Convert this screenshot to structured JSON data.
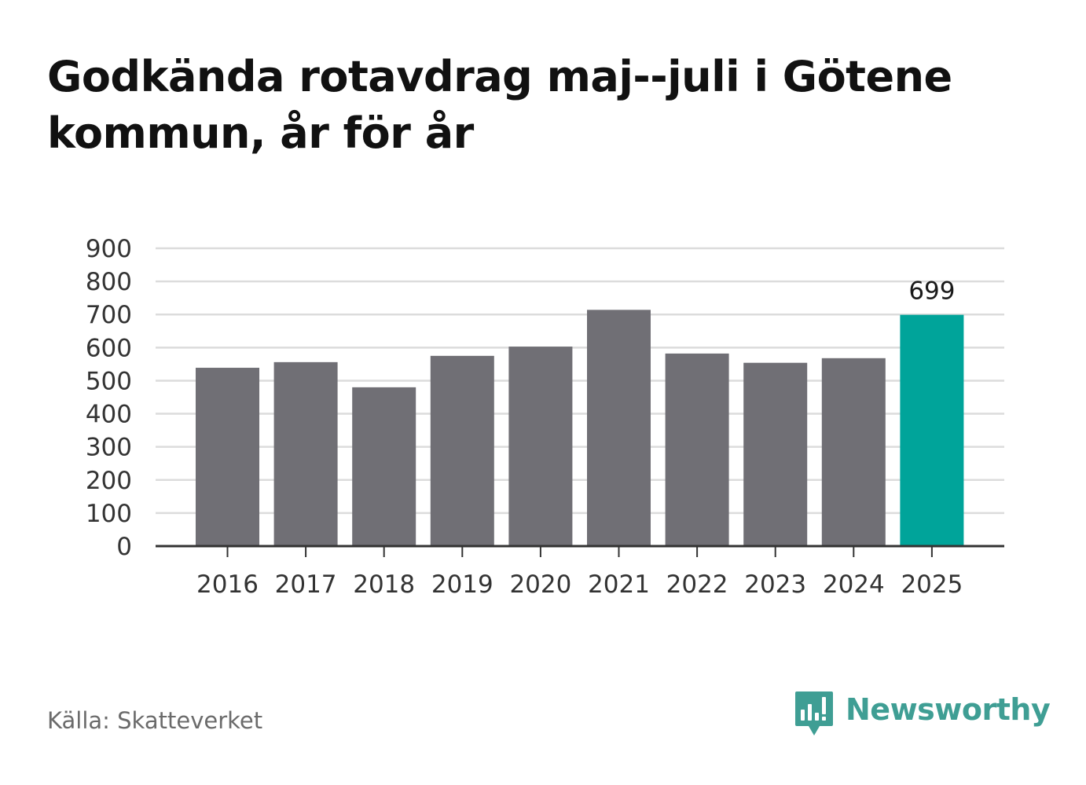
{
  "chart_data": {
    "type": "bar",
    "title": "Godkända rotavdrag maj--juli i Götene kommun, år för år",
    "categories": [
      "2016",
      "2017",
      "2018",
      "2019",
      "2020",
      "2021",
      "2022",
      "2023",
      "2024",
      "2025"
    ],
    "values": [
      539,
      556,
      480,
      575,
      603,
      714,
      582,
      554,
      568,
      699
    ],
    "ylim": [
      0,
      900
    ],
    "yticks": [
      "0",
      "100",
      "200",
      "300",
      "400",
      "500",
      "600",
      "700",
      "800",
      "900"
    ],
    "grid": true,
    "highlight_label": "699",
    "colors": {
      "bar": "#706f75",
      "highlight": "#00a49a",
      "grid": "#dcdcdc",
      "axis": "#333333"
    }
  },
  "footer": {
    "source": "Källa: Skatteverket",
    "brand": "Newsworthy",
    "brand_color": "#3f9e94",
    "brand_icon": "bar-chart-speech-bubble-icon"
  }
}
